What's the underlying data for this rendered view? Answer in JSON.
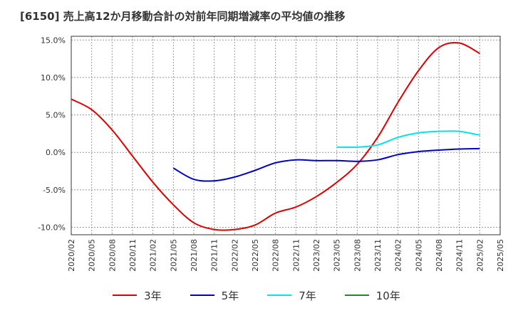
{
  "chart_data": {
    "type": "line",
    "title": "[6150]  売上高12か月移動合計の対前年同期増減率の平均値の推移",
    "ylim": [
      -11,
      15.5
    ],
    "yticks": [
      15,
      10,
      5,
      0,
      -5,
      -10
    ],
    "ytick_labels": [
      "15.0%",
      "10.0%",
      "5.0%",
      "0.0%",
      "-5.0%",
      "-10.0%"
    ],
    "x_range": [
      "2020-02",
      "2025-05"
    ],
    "xtick_labels": [
      "2020/02",
      "2020/05",
      "2020/08",
      "2020/11",
      "2021/02",
      "2021/05",
      "2021/08",
      "2021/11",
      "2022/02",
      "2022/05",
      "2022/08",
      "2022/11",
      "2023/02",
      "2023/05",
      "2023/08",
      "2023/11",
      "2024/02",
      "2024/05",
      "2024/08",
      "2024/11",
      "2025/02",
      "2025/05"
    ],
    "legend_position": "bottom",
    "grid": "dotted",
    "series": [
      {
        "name": "3年",
        "color": "#e00000",
        "points": [
          [
            "2020-02",
            7.1
          ],
          [
            "2020-05",
            5.7
          ],
          [
            "2020-08",
            3.0
          ],
          [
            "2020-11",
            -0.5
          ],
          [
            "2021-02",
            -4.0
          ],
          [
            "2021-05",
            -7.0
          ],
          [
            "2021-08",
            -9.4
          ],
          [
            "2021-11",
            -10.3
          ],
          [
            "2022-02",
            -10.3
          ],
          [
            "2022-05",
            -9.7
          ],
          [
            "2022-08",
            -8.1
          ],
          [
            "2022-11",
            -7.3
          ],
          [
            "2023-02",
            -5.9
          ],
          [
            "2023-05",
            -4.0
          ],
          [
            "2023-08",
            -1.6
          ],
          [
            "2023-11",
            2.0
          ],
          [
            "2024-02",
            6.7
          ],
          [
            "2024-05",
            10.9
          ],
          [
            "2024-08",
            14.0
          ],
          [
            "2024-11",
            14.6
          ],
          [
            "2025-02",
            13.2
          ]
        ]
      },
      {
        "name": "5年",
        "color": "#0000cc",
        "points": [
          [
            "2021-05",
            -2.1
          ],
          [
            "2021-08",
            -3.6
          ],
          [
            "2021-11",
            -3.8
          ],
          [
            "2022-02",
            -3.3
          ],
          [
            "2022-05",
            -2.4
          ],
          [
            "2022-08",
            -1.4
          ],
          [
            "2022-11",
            -1.0
          ],
          [
            "2023-02",
            -1.1
          ],
          [
            "2023-05",
            -1.1
          ],
          [
            "2023-08",
            -1.2
          ],
          [
            "2023-11",
            -1.0
          ],
          [
            "2024-02",
            -0.3
          ],
          [
            "2024-05",
            0.1
          ],
          [
            "2024-08",
            0.3
          ],
          [
            "2024-11",
            0.45
          ],
          [
            "2025-02",
            0.5
          ]
        ]
      },
      {
        "name": "7年",
        "color": "#00e5ee",
        "points": [
          [
            "2023-05",
            0.7
          ],
          [
            "2023-08",
            0.7
          ],
          [
            "2023-11",
            1.0
          ],
          [
            "2024-02",
            2.0
          ],
          [
            "2024-05",
            2.6
          ],
          [
            "2024-08",
            2.8
          ],
          [
            "2024-11",
            2.8
          ],
          [
            "2025-02",
            2.3
          ]
        ]
      },
      {
        "name": "10年",
        "color": "#228b22",
        "points": []
      }
    ]
  }
}
